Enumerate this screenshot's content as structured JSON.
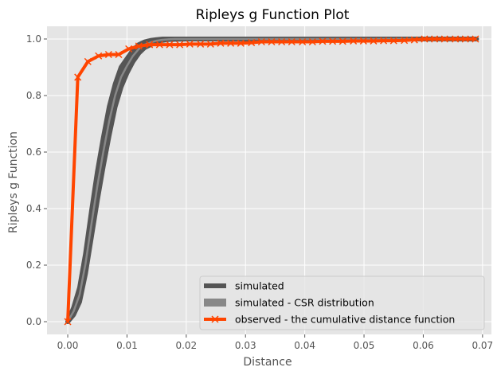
{
  "chart_data": {
    "type": "line",
    "title": "Ripleys g Function Plot",
    "xlabel": "Distance",
    "ylabel": "Ripleys g Function",
    "xlim": [
      -0.0035,
      0.0715
    ],
    "ylim": [
      -0.045,
      1.045
    ],
    "xticks": [
      0.0,
      0.01,
      0.02,
      0.03,
      0.04,
      0.05,
      0.06,
      0.07
    ],
    "xtick_labels": [
      "0.00",
      "0.01",
      "0.02",
      "0.03",
      "0.04",
      "0.05",
      "0.06",
      "0.07"
    ],
    "yticks": [
      0.0,
      0.2,
      0.4,
      0.6,
      0.8,
      1.0
    ],
    "ytick_labels": [
      "0.0",
      "0.2",
      "0.4",
      "0.6",
      "0.8",
      "1.0"
    ],
    "grid": true,
    "legend_position": "lower-right",
    "colors": {
      "background": "#e5e5e5",
      "grid": "#ffffff",
      "simulated": "#555555",
      "csr": "#888888",
      "observed": "#ff4500"
    },
    "series": [
      {
        "name": "simulated",
        "style": "envelope",
        "x": [
          0.0,
          0.001,
          0.002,
          0.003,
          0.004,
          0.005,
          0.006,
          0.007,
          0.008,
          0.009,
          0.01,
          0.011,
          0.012,
          0.013,
          0.014,
          0.015,
          0.016,
          0.017,
          0.018,
          0.02,
          0.022,
          0.025,
          0.03,
          0.04,
          0.05,
          0.06,
          0.069
        ],
        "lower": [
          0.0,
          0.025,
          0.07,
          0.17,
          0.3,
          0.43,
          0.55,
          0.66,
          0.76,
          0.83,
          0.88,
          0.92,
          0.95,
          0.97,
          0.98,
          0.99,
          0.995,
          0.998,
          0.999,
          1.0,
          1.0,
          1.0,
          1.0,
          1.0,
          1.0,
          1.0,
          1.0
        ],
        "upper": [
          0.0,
          0.05,
          0.12,
          0.24,
          0.39,
          0.53,
          0.65,
          0.76,
          0.84,
          0.9,
          0.93,
          0.96,
          0.98,
          0.99,
          0.995,
          0.998,
          1.0,
          1.0,
          1.0,
          1.0,
          1.0,
          1.0,
          1.0,
          1.0,
          1.0,
          1.0,
          1.0
        ]
      },
      {
        "name": "simulated - CSR distribution",
        "x": [
          0.0,
          0.001,
          0.002,
          0.003,
          0.004,
          0.005,
          0.006,
          0.007,
          0.008,
          0.009,
          0.01,
          0.011,
          0.012,
          0.013,
          0.014,
          0.015,
          0.016,
          0.017,
          0.018,
          0.02,
          0.022,
          0.025,
          0.03,
          0.04,
          0.05,
          0.06,
          0.069
        ],
        "values": [
          0.0,
          0.037,
          0.095,
          0.205,
          0.345,
          0.48,
          0.6,
          0.71,
          0.8,
          0.865,
          0.905,
          0.94,
          0.965,
          0.98,
          0.988,
          0.994,
          0.997,
          0.999,
          1.0,
          1.0,
          1.0,
          1.0,
          1.0,
          1.0,
          1.0,
          1.0,
          1.0
        ]
      },
      {
        "name": "observed - the cumulative distance function",
        "markers": "x",
        "x": [
          0.0,
          0.0017,
          0.0034,
          0.0052,
          0.0069,
          0.0086,
          0.0103,
          0.012,
          0.0138,
          0.0155,
          0.0172,
          0.0189,
          0.0206,
          0.0224,
          0.0241,
          0.0258,
          0.0275,
          0.0292,
          0.031,
          0.0327,
          0.0344,
          0.0361,
          0.0378,
          0.0396,
          0.0413,
          0.043,
          0.0447,
          0.0464,
          0.0482,
          0.0499,
          0.0516,
          0.0533,
          0.055,
          0.0568,
          0.0585,
          0.0602,
          0.0619,
          0.0636,
          0.0654,
          0.0671,
          0.0688
        ],
        "values": [
          0.0,
          0.865,
          0.92,
          0.94,
          0.945,
          0.945,
          0.965,
          0.975,
          0.98,
          0.98,
          0.98,
          0.98,
          0.982,
          0.982,
          0.982,
          0.985,
          0.985,
          0.985,
          0.987,
          0.99,
          0.99,
          0.99,
          0.99,
          0.99,
          0.99,
          0.992,
          0.992,
          0.992,
          0.993,
          0.993,
          0.993,
          0.994,
          0.994,
          0.995,
          0.997,
          1.0,
          1.0,
          1.0,
          1.0,
          1.0,
          1.0
        ]
      }
    ]
  }
}
